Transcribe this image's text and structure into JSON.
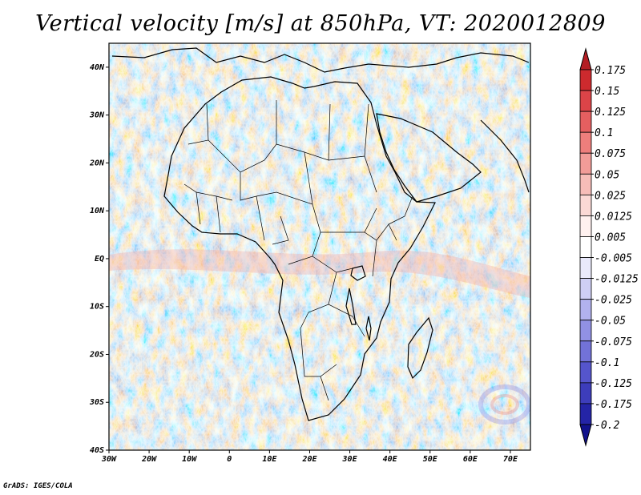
{
  "title": "Vertical velocity [m/s] at 850hPa, VT: 2020012809",
  "footer": "GrADS: IGES/COLA",
  "map": {
    "lat_labels": [
      "40N",
      "30N",
      "20N",
      "10N",
      "EQ",
      "10S",
      "20S",
      "30S",
      "40S"
    ],
    "lat_values": [
      40,
      30,
      20,
      10,
      0,
      -10,
      -20,
      -30,
      -40
    ],
    "lon_labels": [
      "30W",
      "20W",
      "10W",
      "0",
      "10E",
      "20E",
      "30E",
      "40E",
      "50E",
      "60E",
      "70E"
    ],
    "lon_values": [
      -30,
      -20,
      -10,
      0,
      10,
      20,
      30,
      40,
      50,
      60,
      70
    ],
    "lat_range": [
      -40,
      45
    ],
    "lon_range": [
      -30,
      75
    ]
  },
  "colorbar": {
    "labels": [
      "0.175",
      "0.15",
      "0.125",
      "0.1",
      "0.075",
      "0.05",
      "0.025",
      "0.0125",
      "0.005",
      "-0.005",
      "-0.0125",
      "-0.025",
      "-0.05",
      "-0.075",
      "-0.1",
      "-0.125",
      "-0.175",
      "-0.2"
    ],
    "colors": [
      "#b41e24",
      "#cd2a2e",
      "#dc4448",
      "#e55f60",
      "#ee7e7c",
      "#f29c98",
      "#f7bdb8",
      "#fbd9d5",
      "#fff1ef",
      "#ffffff",
      "#e9e9fb",
      "#cfcff5",
      "#b2b2ee",
      "#9191e4",
      "#7272d8",
      "#5555cc",
      "#3d3dbb",
      "#2424a6",
      "#12128c"
    ]
  },
  "icons": {
    "up_arrow": "colorbar-arrow-up-icon",
    "down_arrow": "colorbar-arrow-down-icon"
  }
}
